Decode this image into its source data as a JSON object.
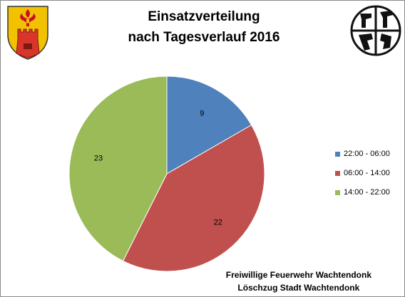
{
  "header": {
    "title_line1": "Einsatzverteilung",
    "title_line2": "nach Tagesverlauf 2016"
  },
  "icons": {
    "left": "coat-of-arms-icon",
    "right": "fire-brigade-emblem-icon"
  },
  "chart_data": {
    "type": "pie",
    "title": "Einsatzverteilung nach Tagesverlauf 2016",
    "categories": [
      "22:00 - 06:00",
      "06:00 - 14:00",
      "14:00 - 22:00"
    ],
    "values": [
      9,
      22,
      23
    ],
    "colors": [
      "#4f81bd",
      "#c0504d",
      "#9bbb59"
    ],
    "data_labels": [
      "9",
      "22",
      "23"
    ],
    "legend": "right",
    "start_angle": "12 o'clock, clockwise"
  },
  "footer": {
    "line1": "Freiwillige Feuerwehr Wachtendonk",
    "line2": "Löschzug Stadt Wachtendonk"
  }
}
